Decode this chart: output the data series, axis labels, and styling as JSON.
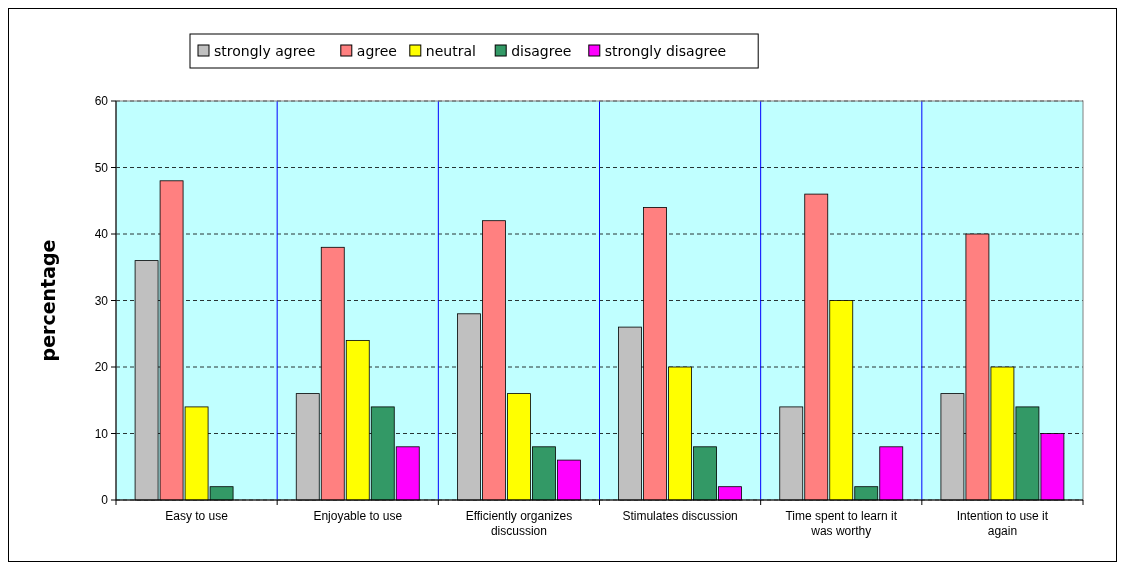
{
  "chart_data": {
    "type": "bar",
    "ylabel": "percentage",
    "categories": [
      "Easy to use",
      "Enjoyable to use",
      "Efficiently organizes discussion",
      "Stimulates discussion",
      "Time spent to learn it was worthy",
      "Intention to use it again"
    ],
    "series": [
      {
        "name": "strongly agree",
        "color": "#c0c0c0",
        "values": [
          36,
          16,
          28,
          26,
          14,
          16
        ]
      },
      {
        "name": "agree",
        "color": "#ff8080",
        "values": [
          48,
          38,
          42,
          44,
          46,
          40
        ]
      },
      {
        "name": "neutral",
        "color": "#ffff00",
        "values": [
          14,
          24,
          16,
          20,
          30,
          20
        ]
      },
      {
        "name": "disagree",
        "color": "#339966",
        "values": [
          2,
          14,
          8,
          8,
          2,
          14
        ]
      },
      {
        "name": "strongly disagree",
        "color": "#ff00ff",
        "values": [
          0,
          8,
          6,
          2,
          8,
          10
        ]
      }
    ],
    "ylim": [
      0,
      60
    ],
    "yticks": [
      0,
      10,
      20,
      30,
      40,
      50,
      60
    ],
    "grid": true,
    "legend": "top"
  }
}
